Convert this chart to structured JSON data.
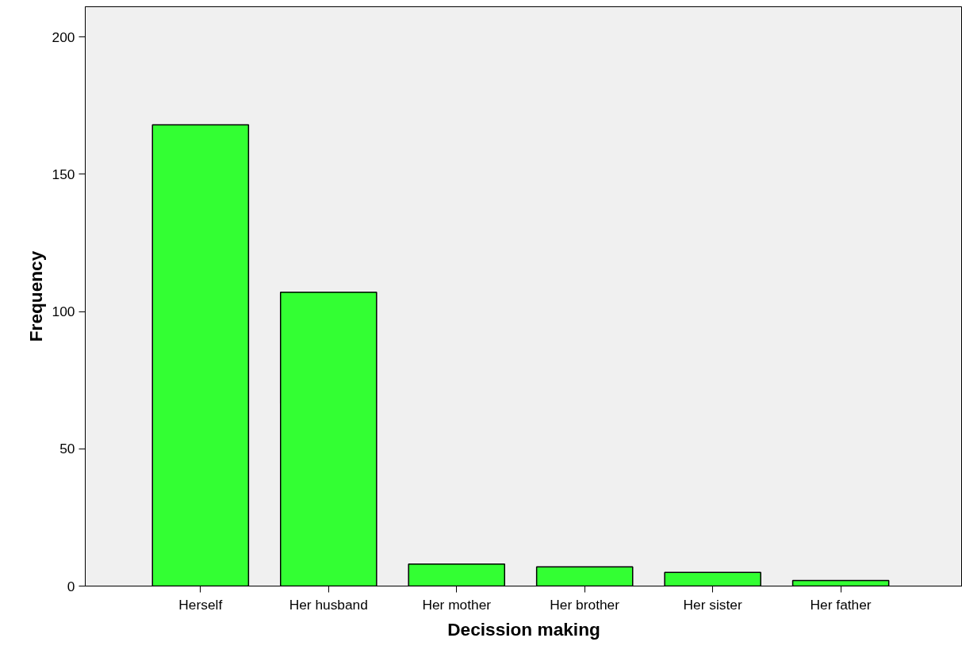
{
  "chart_data": {
    "type": "bar",
    "xlabel": "Decission making",
    "ylabel": "Frequency",
    "categories": [
      "Herself",
      "Her husband",
      "Her mother",
      "Her brother",
      "Her sister",
      "Her father"
    ],
    "values": [
      168,
      107,
      8,
      7,
      5,
      2
    ],
    "color": "#33ff33",
    "ylim": [
      0,
      211
    ],
    "yticks": [
      0,
      50,
      100,
      150,
      200
    ],
    "grid": false
  }
}
